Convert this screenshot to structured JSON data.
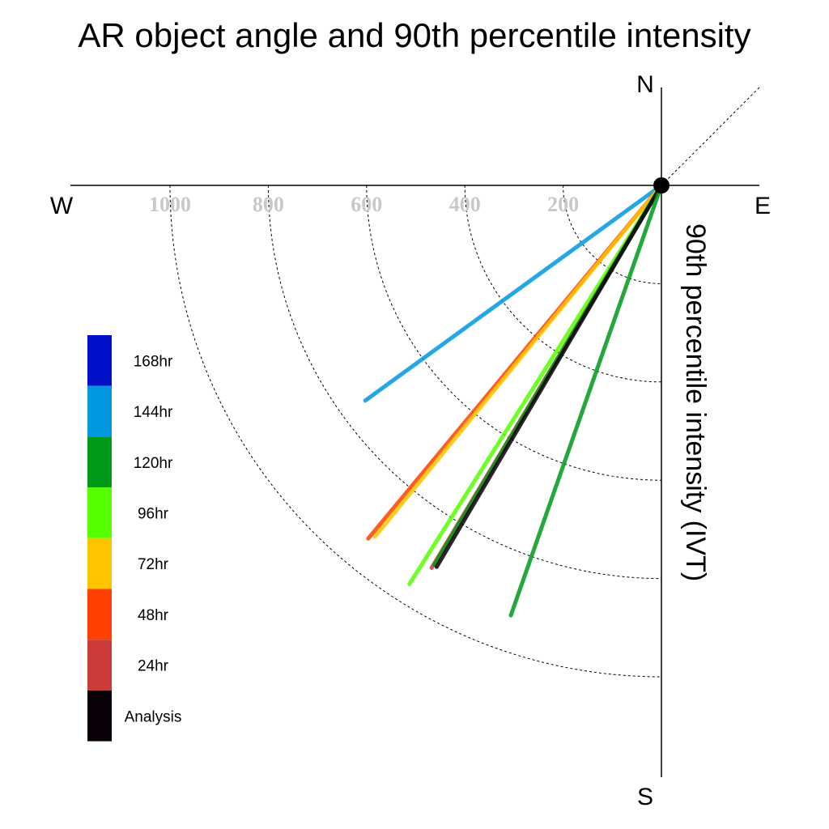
{
  "chart_data": {
    "type": "polar-vector",
    "title": "AR object angle and 90th percentile intensity",
    "ylabel": "90th percentile intensity (IVT)",
    "compass": {
      "north": "N",
      "south": "S",
      "east": "E",
      "west": "W"
    },
    "radial_ticks": [
      200,
      400,
      600,
      800,
      1000
    ],
    "radial_tick_labels": [
      "200",
      "400",
      "600",
      "800",
      "1000"
    ],
    "rlim": [
      0,
      1000
    ],
    "grid": true,
    "legend_position": "left",
    "legend": [
      {
        "label": "168hr",
        "color": "#0010c8"
      },
      {
        "label": "144hr",
        "color": "#0098e0"
      },
      {
        "label": "120hr",
        "color": "#009a19"
      },
      {
        "label": "96hr",
        "color": "#55ff00"
      },
      {
        "label": "72hr",
        "color": "#ffc400"
      },
      {
        "label": "48hr",
        "color": "#ff4000"
      },
      {
        "label": "24hr",
        "color": "#cc3a3a"
      },
      {
        "label": "Analysis",
        "color": "#0a0008"
      }
    ],
    "vectors": [
      {
        "name": "144hr",
        "direction_deg": 234.0,
        "magnitude": 745,
        "color": "#0098e0"
      },
      {
        "name": "48hr",
        "direction_deg": 219.7,
        "magnitude": 934,
        "color": "#ff4000"
      },
      {
        "name": "72hr",
        "direction_deg": 219.2,
        "magnitude": 922,
        "color": "#ffc400"
      },
      {
        "name": "96hr",
        "direction_deg": 212.3,
        "magnitude": 960,
        "color": "#55ff00"
      },
      {
        "name": "24hr",
        "direction_deg": 211.0,
        "magnitude": 908,
        "color": "#cc3a3a"
      },
      {
        "name": "120hr",
        "direction_deg": 210.9,
        "magnitude": 900,
        "color": "#009a19"
      },
      {
        "name": "Analysis",
        "direction_deg": 210.5,
        "magnitude": 901,
        "color": "#0a0008"
      },
      {
        "name": "120hr",
        "direction_deg": 199.3,
        "magnitude": 927,
        "color": "#009a19"
      }
    ]
  }
}
